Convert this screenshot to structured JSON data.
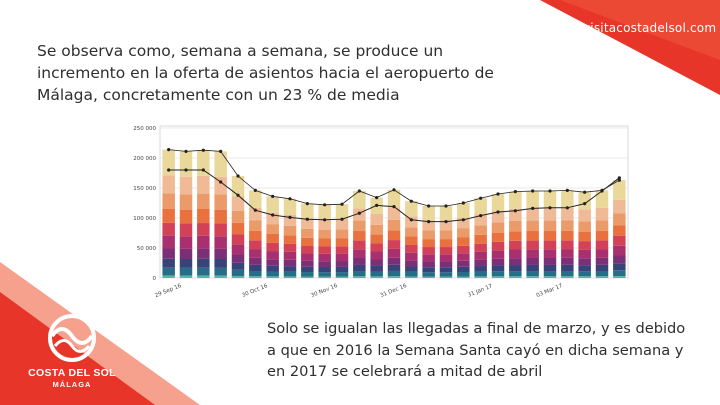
{
  "brand": {
    "url_text": "visitacostadelsol.com",
    "logo_name": "COSTA DEL SOL",
    "logo_sub": "MÁLAGA",
    "primary_color": "#e8352a",
    "secondary_color": "#f6a08e"
  },
  "headline": {
    "line1": "Se observa como, semana a semana, se produce un",
    "line2": "incremento en la oferta de asientos hacia el aeropuerto de",
    "line3": "Málaga, concretamente con un 23 % de media"
  },
  "footnote": {
    "line1": "Solo se igualan las llegadas a final de marzo, y es debido",
    "line2": "a que en 2016 la Semana Santa cayó en dicha semana y",
    "line3": "en 2017 se celebrará a mitad de abril"
  },
  "chart_data": {
    "type": "bar",
    "stacked": true,
    "title": "",
    "xlabel": "",
    "ylabel": "",
    "ylim": [
      0,
      250000
    ],
    "yticks": [
      "0",
      "50 000",
      "100 000",
      "150 000",
      "200 000",
      "250 000"
    ],
    "xtick_labels": [
      "29 Sep 16",
      "30 Oct 16",
      "30 Nov 16",
      "31 Dec 16",
      "31 Jan 17",
      "03 Mar 17"
    ],
    "grid": true,
    "bar_totals": [
      214000,
      211000,
      213000,
      211000,
      170000,
      146000,
      136000,
      132000,
      124000,
      122000,
      123000,
      145000,
      134000,
      147000,
      128000,
      120000,
      120000,
      125000,
      133000,
      140000,
      144000,
      145000,
      145000,
      146000,
      143000,
      146000,
      163000
    ],
    "segment_colors": [
      "#57b6a0",
      "#2b6a89",
      "#36447a",
      "#7a2f77",
      "#a8306e",
      "#d34156",
      "#e8713f",
      "#eb9a69",
      "#efba95",
      "#ead79a"
    ],
    "segment_fractions": [
      0.02,
      0.06,
      0.07,
      0.08,
      0.1,
      0.1,
      0.11,
      0.12,
      0.14,
      0.2
    ],
    "line_series": {
      "name": "",
      "color": "#222222",
      "values": [
        180000,
        180000,
        180000,
        160000,
        138000,
        113000,
        105000,
        101000,
        98000,
        97000,
        98000,
        108000,
        121000,
        119000,
        97000,
        94000,
        94000,
        97000,
        104000,
        110000,
        112000,
        116000,
        117000,
        117000,
        124000,
        145000,
        167000
      ]
    }
  }
}
